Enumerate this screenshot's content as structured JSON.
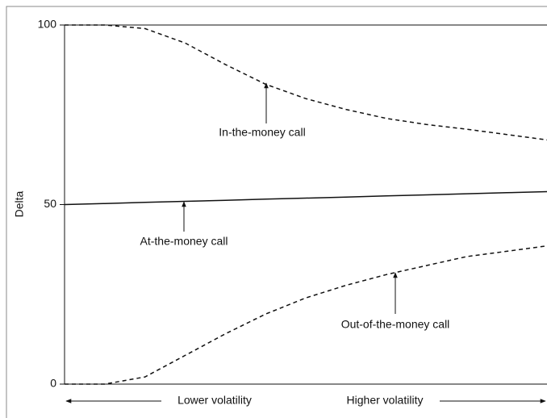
{
  "chart_data": {
    "type": "line",
    "ylabel": "Delta",
    "xlabels": [
      "Lower volatility",
      "Higher volatility"
    ],
    "categories": [
      null,
      null,
      null,
      null,
      null,
      null,
      null,
      null,
      null,
      null,
      null,
      null,
      null
    ],
    "series": [
      {
        "name": "In-the-money call",
        "color": "#111111",
        "dashed": true,
        "values": [
          100,
          100,
          99,
          95,
          89,
          83.5,
          79.5,
          76.5,
          74,
          72.3,
          71,
          69.5,
          68
        ]
      },
      {
        "name": "At-the-money call",
        "color": "#111111",
        "dashed": false,
        "values": [
          50,
          50.3,
          50.6,
          50.9,
          51.2,
          51.5,
          51.8,
          52.1,
          52.4,
          52.7,
          53,
          53.3,
          53.6
        ]
      },
      {
        "name": "Out-of-the-money call",
        "color": "#111111",
        "dashed": true,
        "values": [
          0,
          0,
          2,
          8,
          14,
          19.5,
          24,
          27.5,
          30.5,
          33,
          35.5,
          37,
          38.5
        ]
      }
    ],
    "ylim": [
      0,
      100
    ],
    "yticks": [
      0,
      50,
      100
    ],
    "grid": false
  }
}
